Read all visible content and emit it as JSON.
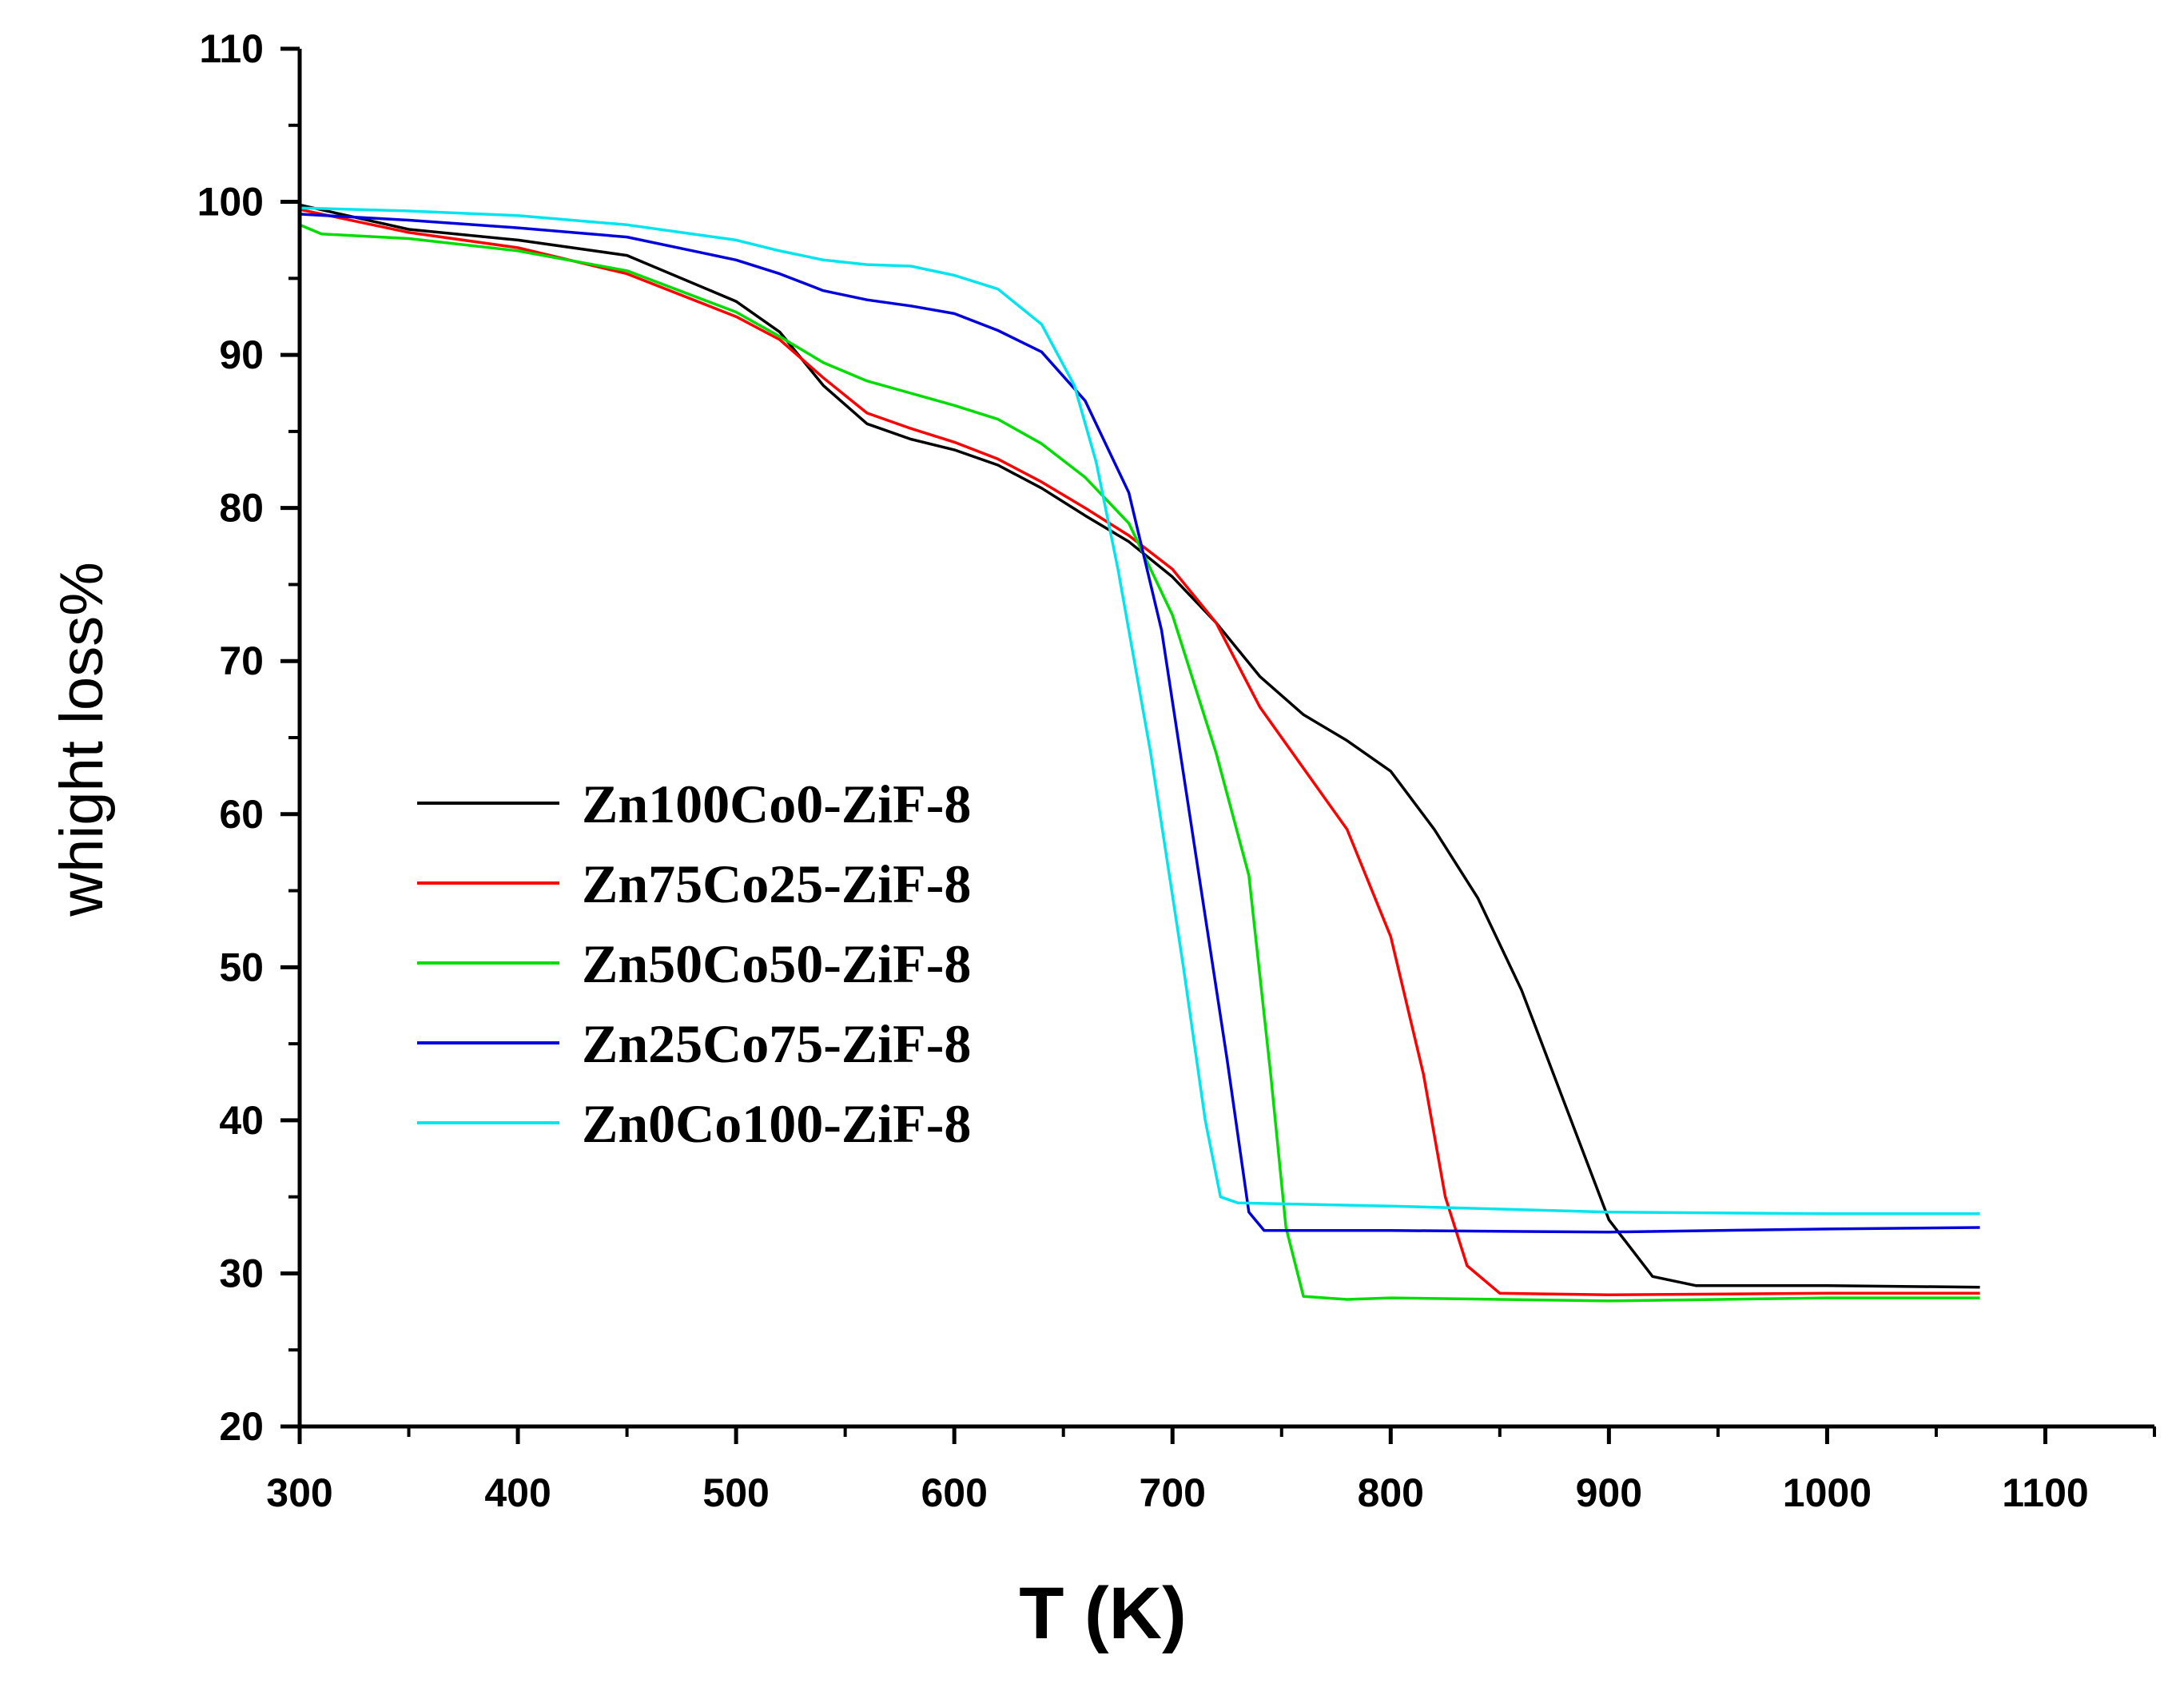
{
  "chart_data": {
    "type": "line",
    "title": "",
    "xlabel": "T (K)",
    "ylabel": "whight loss%",
    "xlim": [
      300,
      1150
    ],
    "ylim": [
      20,
      110
    ],
    "xticks": [
      300,
      400,
      500,
      600,
      700,
      800,
      900,
      1000,
      1100
    ],
    "xtick_labels": [
      "300",
      "400",
      "500",
      "600",
      "700",
      "800",
      "900",
      "1000",
      "1100"
    ],
    "yticks": [
      20,
      30,
      40,
      50,
      60,
      70,
      80,
      90,
      100,
      110
    ],
    "ytick_labels": [
      "20",
      "30",
      "40",
      "50",
      "60",
      "70",
      "80",
      "90",
      "100",
      "110"
    ],
    "grid": false,
    "legend_position": "left-middle",
    "series": [
      {
        "name": "Zn100Co0-ZiF-8",
        "color": "#000000",
        "points": [
          [
            300,
            99.8
          ],
          [
            350,
            98.2
          ],
          [
            400,
            97.5
          ],
          [
            450,
            96.5
          ],
          [
            500,
            93.5
          ],
          [
            520,
            91.5
          ],
          [
            540,
            88
          ],
          [
            560,
            85.5
          ],
          [
            580,
            84.5
          ],
          [
            600,
            83.8
          ],
          [
            620,
            82.8
          ],
          [
            640,
            81.3
          ],
          [
            660,
            79.5
          ],
          [
            680,
            77.8
          ],
          [
            700,
            75.5
          ],
          [
            720,
            72.5
          ],
          [
            740,
            69
          ],
          [
            760,
            66.5
          ],
          [
            780,
            64.8
          ],
          [
            800,
            62.8
          ],
          [
            820,
            59
          ],
          [
            840,
            54.5
          ],
          [
            860,
            48.5
          ],
          [
            880,
            41
          ],
          [
            900,
            33.5
          ],
          [
            920,
            29.8
          ],
          [
            940,
            29.2
          ],
          [
            1000,
            29.2
          ],
          [
            1070,
            29.1
          ]
        ]
      },
      {
        "name": "Zn75Co25-ZiF-8",
        "color": "#ff0000",
        "points": [
          [
            300,
            99.5
          ],
          [
            350,
            98
          ],
          [
            400,
            97
          ],
          [
            450,
            95.3
          ],
          [
            500,
            92.5
          ],
          [
            520,
            91
          ],
          [
            540,
            88.5
          ],
          [
            560,
            86.2
          ],
          [
            580,
            85.2
          ],
          [
            600,
            84.3
          ],
          [
            620,
            83.2
          ],
          [
            640,
            81.7
          ],
          [
            660,
            80
          ],
          [
            680,
            78.2
          ],
          [
            700,
            76
          ],
          [
            720,
            72.5
          ],
          [
            740,
            67
          ],
          [
            760,
            63
          ],
          [
            780,
            59
          ],
          [
            800,
            52
          ],
          [
            815,
            43
          ],
          [
            825,
            35
          ],
          [
            835,
            30.5
          ],
          [
            850,
            28.7
          ],
          [
            900,
            28.6
          ],
          [
            1000,
            28.7
          ],
          [
            1070,
            28.7
          ]
        ]
      },
      {
        "name": "Zn50Co50-ZiF-8",
        "color": "#00dd00",
        "points": [
          [
            300,
            98.5
          ],
          [
            310,
            97.9
          ],
          [
            350,
            97.6
          ],
          [
            400,
            96.8
          ],
          [
            450,
            95.5
          ],
          [
            500,
            92.8
          ],
          [
            520,
            91.2
          ],
          [
            540,
            89.5
          ],
          [
            560,
            88.3
          ],
          [
            580,
            87.5
          ],
          [
            600,
            86.7
          ],
          [
            620,
            85.8
          ],
          [
            640,
            84.2
          ],
          [
            660,
            82
          ],
          [
            680,
            79
          ],
          [
            700,
            73
          ],
          [
            720,
            64
          ],
          [
            735,
            56
          ],
          [
            745,
            43
          ],
          [
            752,
            33
          ],
          [
            760,
            28.5
          ],
          [
            780,
            28.3
          ],
          [
            800,
            28.4
          ],
          [
            900,
            28.2
          ],
          [
            1000,
            28.4
          ],
          [
            1070,
            28.4
          ]
        ]
      },
      {
        "name": "Zn25Co75-ZiF-8",
        "color": "#0000dd",
        "points": [
          [
            300,
            99.2
          ],
          [
            350,
            98.8
          ],
          [
            400,
            98.3
          ],
          [
            450,
            97.7
          ],
          [
            500,
            96.2
          ],
          [
            520,
            95.3
          ],
          [
            540,
            94.2
          ],
          [
            560,
            93.6
          ],
          [
            580,
            93.2
          ],
          [
            600,
            92.7
          ],
          [
            620,
            91.6
          ],
          [
            640,
            90.2
          ],
          [
            660,
            87
          ],
          [
            680,
            81
          ],
          [
            695,
            72
          ],
          [
            710,
            58
          ],
          [
            725,
            44
          ],
          [
            735,
            34
          ],
          [
            742,
            32.8
          ],
          [
            800,
            32.8
          ],
          [
            900,
            32.7
          ],
          [
            1000,
            32.9
          ],
          [
            1070,
            33
          ]
        ]
      },
      {
        "name": "Zn0Co100-ZiF-8",
        "color": "#00e5ee",
        "points": [
          [
            300,
            99.6
          ],
          [
            350,
            99.4
          ],
          [
            400,
            99.1
          ],
          [
            450,
            98.5
          ],
          [
            500,
            97.5
          ],
          [
            520,
            96.8
          ],
          [
            540,
            96.2
          ],
          [
            560,
            95.9
          ],
          [
            580,
            95.8
          ],
          [
            600,
            95.2
          ],
          [
            620,
            94.3
          ],
          [
            640,
            92
          ],
          [
            655,
            88
          ],
          [
            665,
            83
          ],
          [
            675,
            76
          ],
          [
            690,
            64
          ],
          [
            705,
            50
          ],
          [
            715,
            40
          ],
          [
            722,
            35
          ],
          [
            730,
            34.6
          ],
          [
            800,
            34.4
          ],
          [
            900,
            34
          ],
          [
            1000,
            33.9
          ],
          [
            1070,
            33.9
          ]
        ]
      }
    ]
  }
}
